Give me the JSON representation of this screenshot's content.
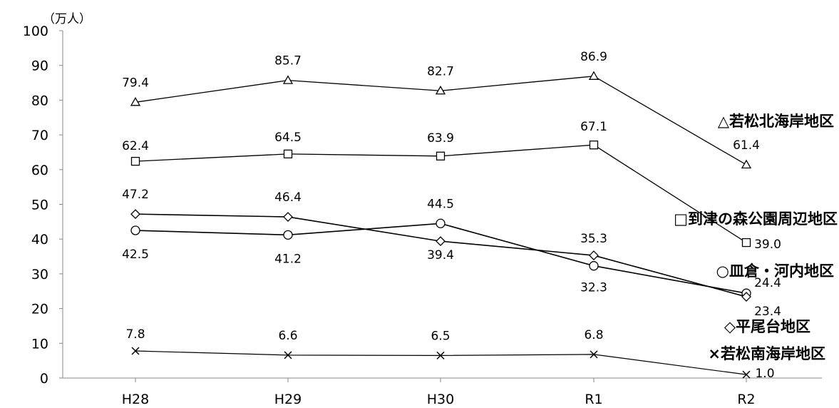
{
  "chart_data": {
    "type": "line",
    "unit": "（万人）",
    "categories": [
      "H28",
      "H29",
      "H30",
      "R1",
      "R2"
    ],
    "ylim": [
      0,
      100
    ],
    "yticks": [
      "0",
      "10",
      "20",
      "30",
      "40",
      "50",
      "60",
      "70",
      "80",
      "90",
      "100"
    ],
    "grid": false,
    "series": [
      {
        "name": "若松北海岸地区",
        "marker": "triangle",
        "values": [
          79.4,
          85.7,
          82.7,
          86.9,
          61.4
        ],
        "labels": [
          "79.4",
          "85.7",
          "82.7",
          "86.9",
          "61.4"
        ]
      },
      {
        "name": "到津の森公園周辺地区",
        "marker": "square",
        "values": [
          62.4,
          64.5,
          63.9,
          67.1,
          39.0
        ],
        "labels": [
          "62.4",
          "64.5",
          "63.9",
          "67.1",
          "39.0"
        ]
      },
      {
        "name": "皿倉・河内地区",
        "marker": "circle",
        "values": [
          42.5,
          41.2,
          44.5,
          32.3,
          24.4
        ],
        "labels": [
          "42.5",
          "41.2",
          "44.5",
          "32.3",
          "24.4"
        ]
      },
      {
        "name": "平尾台地区",
        "marker": "diamond",
        "values": [
          47.2,
          46.4,
          39.4,
          35.3,
          23.4
        ],
        "labels": [
          "47.2",
          "46.4",
          "39.4",
          "35.3",
          "23.4"
        ]
      },
      {
        "name": "若松南海岸地区",
        "marker": "cross",
        "values": [
          7.8,
          6.6,
          6.5,
          6.8,
          1.0
        ],
        "labels": [
          "7.8",
          "6.6",
          "6.5",
          "6.8",
          "1.0"
        ]
      }
    ]
  }
}
